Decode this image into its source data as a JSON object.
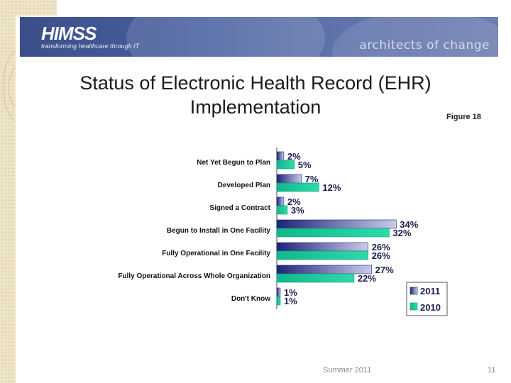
{
  "header": {
    "logo": "HIMSS",
    "tagline": "transforming healthcare through IT",
    "slogan": "architects of change"
  },
  "slide": {
    "title": "Status of Electronic Health Record (EHR) Implementation",
    "figure_label": "Figure 18",
    "footer": "Summer 2011",
    "page_number": "11"
  },
  "colors": {
    "series_2011": "#2e3192",
    "series_2010": "#16c79a"
  },
  "chart_data": {
    "type": "bar",
    "orientation": "horizontal",
    "categories": [
      "Net Yet Begun to Plan",
      "Developed Plan",
      "Signed a Contract",
      "Begun to Install in One Facility",
      "Fully Operational in One Facility",
      "Fully Operational Across Whole Organization",
      "Don't Know"
    ],
    "series": [
      {
        "name": "2011",
        "values": [
          2,
          7,
          2,
          34,
          26,
          27,
          1
        ],
        "labels": [
          "2%",
          "7%",
          "2%",
          "34%",
          "26%",
          "27%",
          "1%"
        ]
      },
      {
        "name": "2010",
        "values": [
          5,
          12,
          3,
          32,
          26,
          22,
          1
        ],
        "labels": [
          "5%",
          "12%",
          "3%",
          "32%",
          "26%",
          "22%",
          "1%"
        ]
      }
    ],
    "xlim": [
      0,
      40
    ],
    "unit": "%",
    "legend_position": "bottom-right",
    "grid": false
  }
}
